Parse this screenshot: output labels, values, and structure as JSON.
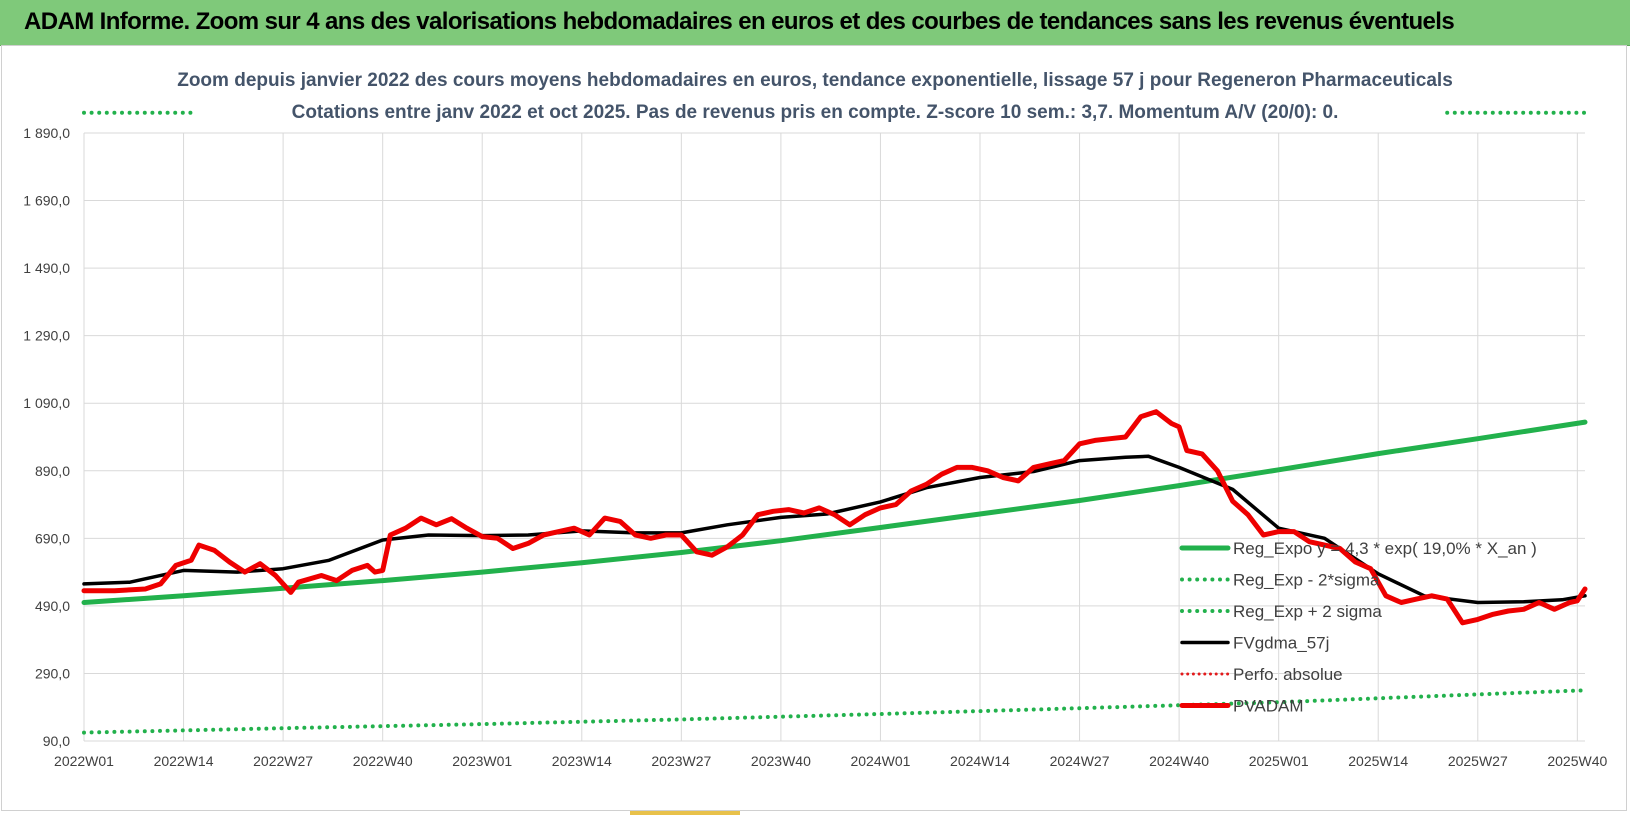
{
  "header": {
    "title": "ADAM Informe. Zoom sur 4 ans des valorisations hebdomadaires en euros et des courbes de tendances sans les revenus éventuels"
  },
  "chart_data": {
    "type": "line",
    "title": "Zoom depuis janvier 2022 des cours moyens hebdomadaires en euros, tendance exponentielle, lissage 57 j pour Regeneron Pharmaceuticals",
    "subtitle": "Cotations entre janv 2022 et oct 2025. Pas de revenus pris en compte. Z-score 10 sem.: 3,7. Momentum A/V (20/0): 0.",
    "xlabel": "",
    "ylabel": "",
    "ylim": [
      90,
      1890
    ],
    "x_range": [
      0,
      196
    ],
    "grid": true,
    "legend_position": "bottom-right",
    "y_ticks": [
      {
        "value": 90,
        "label": "90,0"
      },
      {
        "value": 290,
        "label": "290,0"
      },
      {
        "value": 490,
        "label": "490,0"
      },
      {
        "value": 690,
        "label": "690,0"
      },
      {
        "value": 890,
        "label": "890,0"
      },
      {
        "value": 1090,
        "label": "1 090,0"
      },
      {
        "value": 1290,
        "label": "1 290,0"
      },
      {
        "value": 1490,
        "label": "1 490,0"
      },
      {
        "value": 1690,
        "label": "1 690,0"
      },
      {
        "value": 1890,
        "label": "1 890,0"
      }
    ],
    "x_ticks": [
      {
        "index": 0,
        "label": "2022W01"
      },
      {
        "index": 13,
        "label": "2022W14"
      },
      {
        "index": 26,
        "label": "2022W27"
      },
      {
        "index": 39,
        "label": "2022W40"
      },
      {
        "index": 52,
        "label": "2023W01"
      },
      {
        "index": 65,
        "label": "2023W14"
      },
      {
        "index": 78,
        "label": "2023W27"
      },
      {
        "index": 91,
        "label": "2023W40"
      },
      {
        "index": 104,
        "label": "2024W01"
      },
      {
        "index": 117,
        "label": "2024W14"
      },
      {
        "index": 130,
        "label": "2024W27"
      },
      {
        "index": 143,
        "label": "2024W40"
      },
      {
        "index": 156,
        "label": "2025W01"
      },
      {
        "index": 169,
        "label": "2025W14"
      },
      {
        "index": 182,
        "label": "2025W27"
      },
      {
        "index": 195,
        "label": "2025W40"
      }
    ],
    "series": [
      {
        "name": "Reg_Expo y = 4,3 * exp( 19,0% * X_an )",
        "color": "#22b14c",
        "style": "solid",
        "width": 5,
        "points": [
          [
            0,
            500
          ],
          [
            13,
            520
          ],
          [
            26,
            542
          ],
          [
            39,
            565
          ],
          [
            52,
            590
          ],
          [
            65,
            618
          ],
          [
            78,
            648
          ],
          [
            91,
            683
          ],
          [
            104,
            722
          ],
          [
            117,
            762
          ],
          [
            130,
            802
          ],
          [
            143,
            846
          ],
          [
            156,
            893
          ],
          [
            169,
            941
          ],
          [
            182,
            985
          ],
          [
            196,
            1034
          ]
        ]
      },
      {
        "name": "Reg_Exp - 2*sigma",
        "color": "#22b14c",
        "style": "dotted",
        "width": 4,
        "points": [
          [
            0,
            115
          ],
          [
            26,
            128
          ],
          [
            52,
            140
          ],
          [
            78,
            154
          ],
          [
            104,
            170
          ],
          [
            130,
            187
          ],
          [
            156,
            205
          ],
          [
            182,
            228
          ],
          [
            196,
            240
          ]
        ]
      },
      {
        "name": "Reg_Exp + 2 sigma",
        "color": "#22b14c",
        "style": "dotted",
        "width": 4,
        "segments": [
          [
            [
              0,
              1950
            ],
            [
              14,
              1950
            ]
          ],
          [
            [
              178,
              1950
            ],
            [
              196,
              1950
            ]
          ]
        ]
      },
      {
        "name": "FVgdma_57j",
        "color": "#000000",
        "style": "solid",
        "width": 3.5,
        "points": [
          [
            0,
            555
          ],
          [
            6,
            560
          ],
          [
            13,
            595
          ],
          [
            20,
            590
          ],
          [
            26,
            600
          ],
          [
            32,
            625
          ],
          [
            39,
            685
          ],
          [
            45,
            700
          ],
          [
            52,
            698
          ],
          [
            58,
            700
          ],
          [
            65,
            712
          ],
          [
            72,
            706
          ],
          [
            78,
            706
          ],
          [
            84,
            730
          ],
          [
            91,
            752
          ],
          [
            97,
            762
          ],
          [
            104,
            798
          ],
          [
            110,
            840
          ],
          [
            117,
            870
          ],
          [
            124,
            888
          ],
          [
            130,
            920
          ],
          [
            136,
            930
          ],
          [
            139,
            933
          ],
          [
            143,
            900
          ],
          [
            150,
            835
          ],
          [
            156,
            720
          ],
          [
            162,
            690
          ],
          [
            169,
            585
          ],
          [
            175,
            520
          ],
          [
            182,
            500
          ],
          [
            188,
            502
          ],
          [
            193,
            508
          ],
          [
            196,
            520
          ]
        ]
      },
      {
        "name": "Perfo. absolue",
        "color": "#e31a1c",
        "style": "dotted",
        "width": 3,
        "points": []
      },
      {
        "name": "PVADAM",
        "color": "#ee0000",
        "style": "solid",
        "width": 5,
        "points": [
          [
            0,
            535
          ],
          [
            4,
            535
          ],
          [
            8,
            540
          ],
          [
            10,
            555
          ],
          [
            12,
            610
          ],
          [
            14,
            625
          ],
          [
            15,
            670
          ],
          [
            17,
            655
          ],
          [
            19,
            620
          ],
          [
            21,
            590
          ],
          [
            23,
            615
          ],
          [
            25,
            580
          ],
          [
            27,
            530
          ],
          [
            28,
            560
          ],
          [
            31,
            580
          ],
          [
            33,
            565
          ],
          [
            35,
            595
          ],
          [
            37,
            610
          ],
          [
            38,
            590
          ],
          [
            39,
            595
          ],
          [
            40,
            700
          ],
          [
            42,
            720
          ],
          [
            44,
            750
          ],
          [
            46,
            730
          ],
          [
            48,
            748
          ],
          [
            50,
            720
          ],
          [
            52,
            695
          ],
          [
            54,
            690
          ],
          [
            56,
            660
          ],
          [
            58,
            675
          ],
          [
            60,
            700
          ],
          [
            62,
            710
          ],
          [
            64,
            720
          ],
          [
            66,
            700
          ],
          [
            68,
            750
          ],
          [
            70,
            740
          ],
          [
            72,
            700
          ],
          [
            74,
            690
          ],
          [
            76,
            700
          ],
          [
            78,
            700
          ],
          [
            80,
            650
          ],
          [
            82,
            640
          ],
          [
            84,
            665
          ],
          [
            86,
            700
          ],
          [
            88,
            760
          ],
          [
            90,
            770
          ],
          [
            92,
            775
          ],
          [
            94,
            765
          ],
          [
            96,
            780
          ],
          [
            98,
            760
          ],
          [
            100,
            730
          ],
          [
            102,
            760
          ],
          [
            104,
            780
          ],
          [
            106,
            790
          ],
          [
            108,
            830
          ],
          [
            110,
            850
          ],
          [
            112,
            880
          ],
          [
            114,
            900
          ],
          [
            116,
            900
          ],
          [
            118,
            890
          ],
          [
            120,
            870
          ],
          [
            122,
            860
          ],
          [
            124,
            900
          ],
          [
            126,
            910
          ],
          [
            128,
            920
          ],
          [
            130,
            970
          ],
          [
            132,
            980
          ],
          [
            134,
            985
          ],
          [
            136,
            990
          ],
          [
            138,
            1050
          ],
          [
            140,
            1065
          ],
          [
            142,
            1030
          ],
          [
            143,
            1020
          ],
          [
            144,
            950
          ],
          [
            146,
            940
          ],
          [
            148,
            890
          ],
          [
            150,
            800
          ],
          [
            152,
            760
          ],
          [
            154,
            700
          ],
          [
            156,
            710
          ],
          [
            158,
            710
          ],
          [
            160,
            680
          ],
          [
            162,
            670
          ],
          [
            164,
            660
          ],
          [
            166,
            620
          ],
          [
            168,
            600
          ],
          [
            170,
            520
          ],
          [
            172,
            500
          ],
          [
            174,
            510
          ],
          [
            176,
            520
          ],
          [
            178,
            510
          ],
          [
            180,
            440
          ],
          [
            182,
            450
          ],
          [
            184,
            465
          ],
          [
            186,
            475
          ],
          [
            188,
            480
          ],
          [
            190,
            500
          ],
          [
            192,
            480
          ],
          [
            194,
            500
          ],
          [
            195,
            505
          ],
          [
            196,
            540
          ]
        ]
      }
    ]
  }
}
